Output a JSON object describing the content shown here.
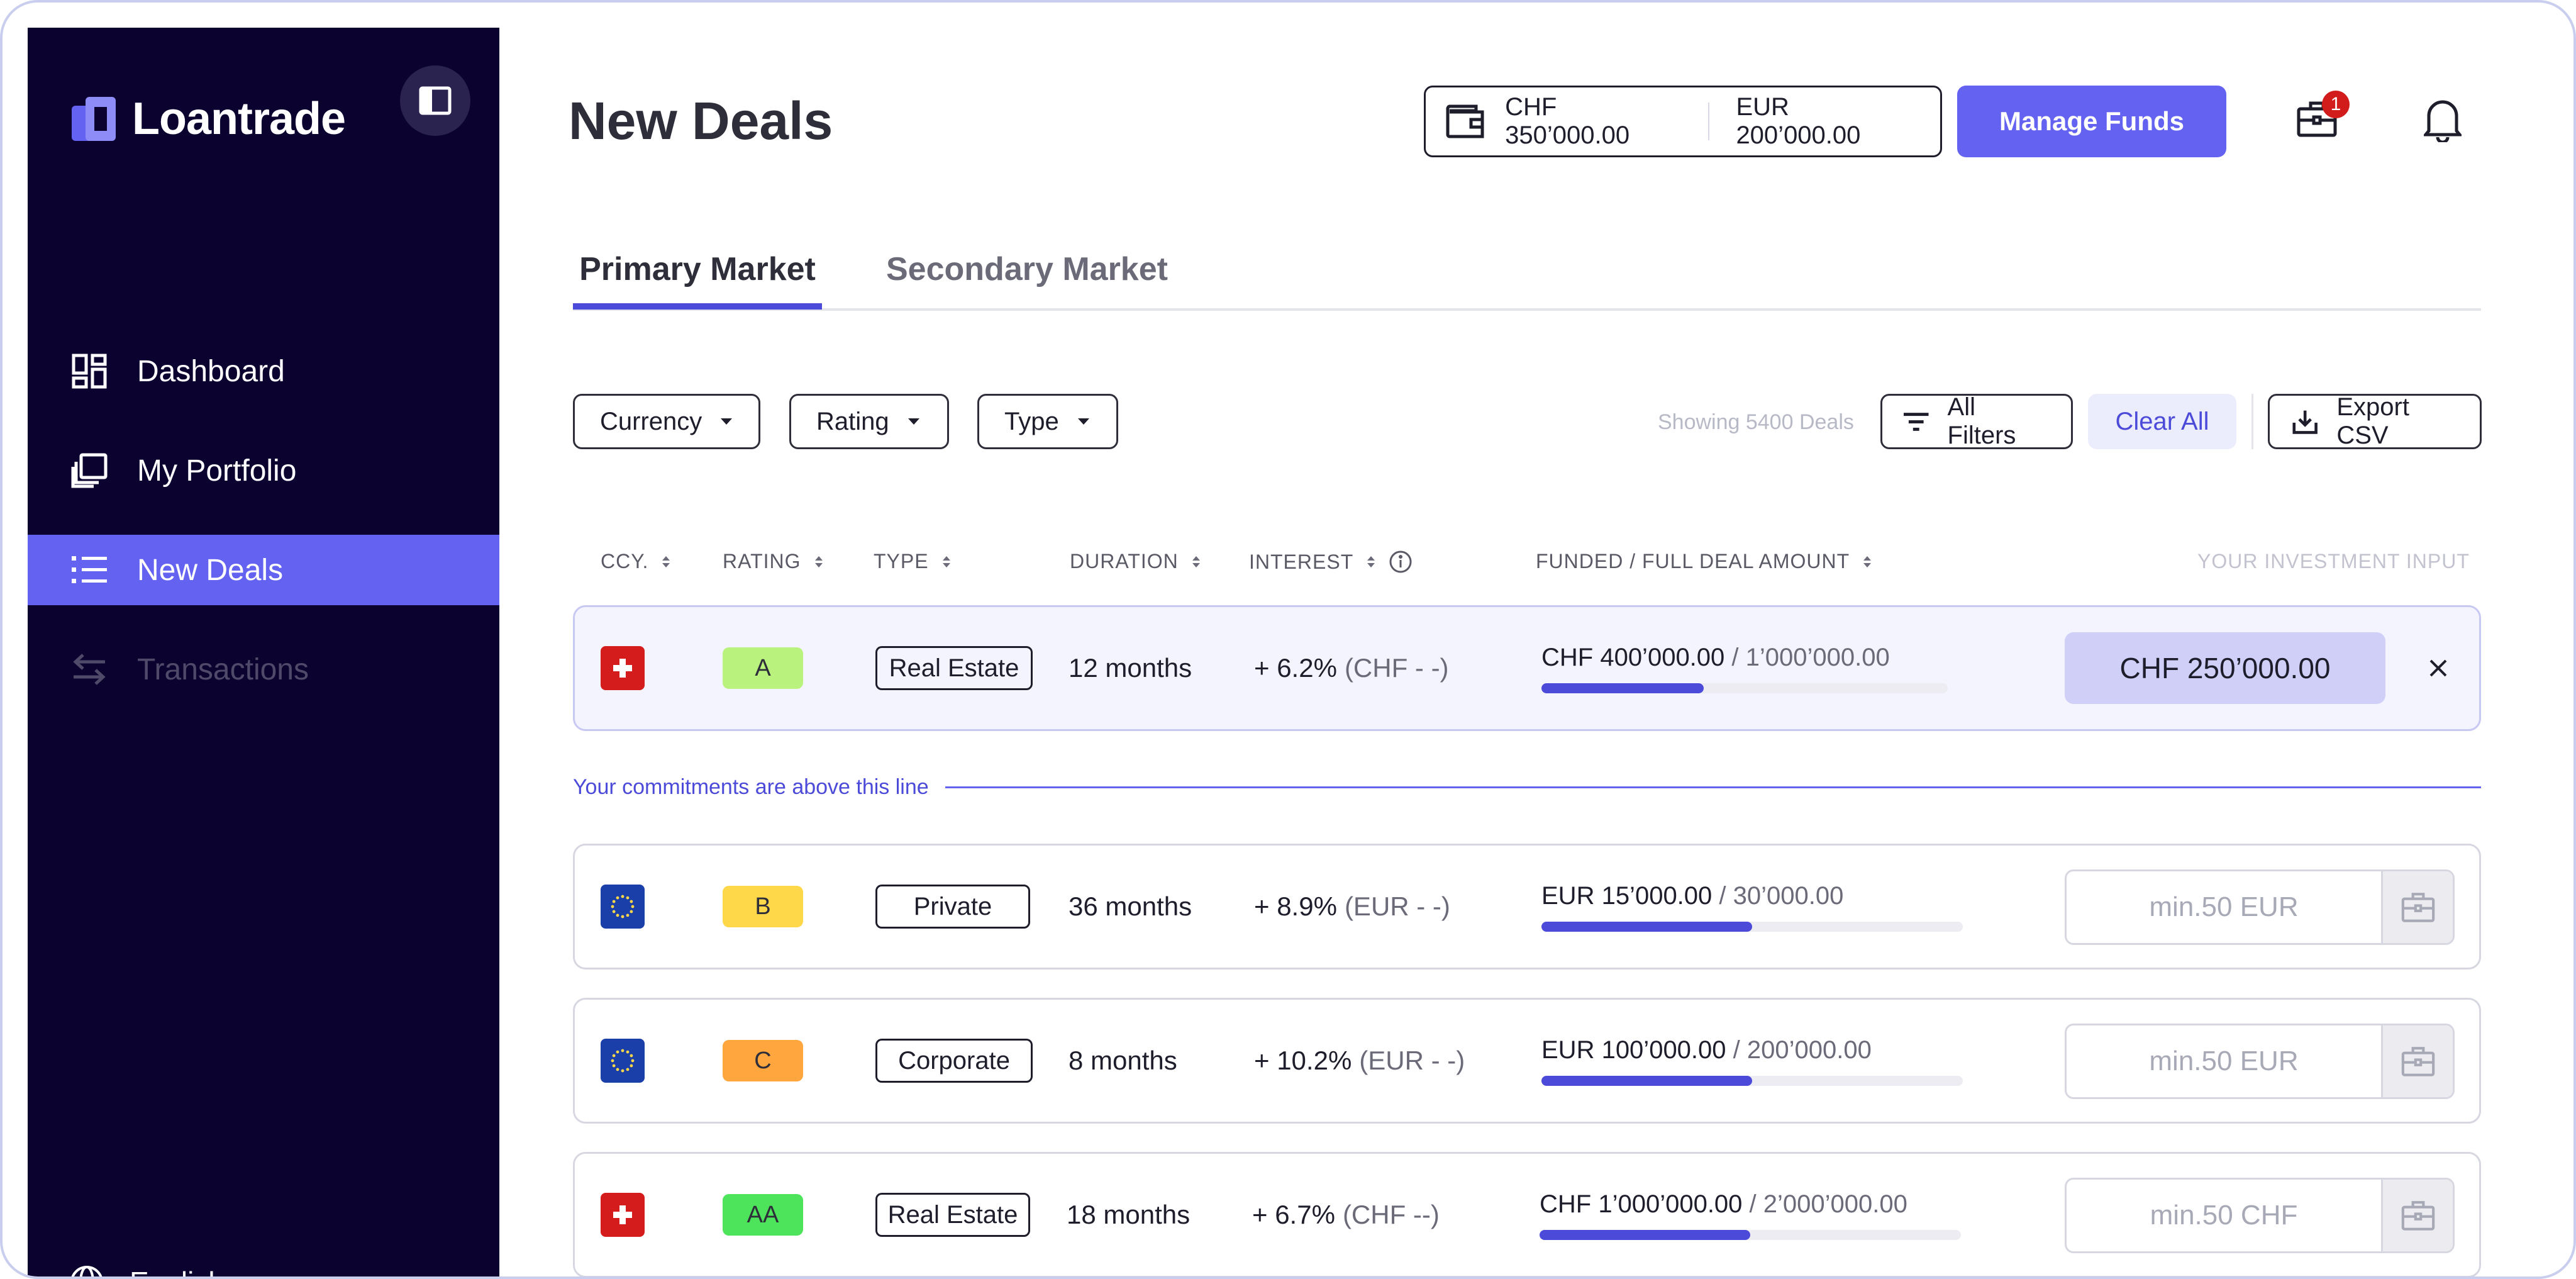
{
  "app": {
    "name": "Loantrade"
  },
  "sidebar": {
    "items": [
      {
        "label": "Dashboard",
        "icon": "dashboard-icon",
        "state": "normal"
      },
      {
        "label": "My Portfolio",
        "icon": "portfolio-icon",
        "state": "normal"
      },
      {
        "label": "New Deals",
        "icon": "list-icon",
        "state": "active"
      },
      {
        "label": "Transactions",
        "icon": "transfer-icon",
        "state": "disabled"
      }
    ],
    "language": "English"
  },
  "header": {
    "title": "New Deals",
    "balance_chf": "CHF 350’000.00",
    "balance_eur": "EUR 200’000.00",
    "manage_label": "Manage Funds",
    "notification_count": "1"
  },
  "tabs": [
    {
      "label": "Primary Market",
      "active": true
    },
    {
      "label": "Secondary Market",
      "active": false
    }
  ],
  "filters": {
    "currency": "Currency",
    "rating": "Rating",
    "type": "Type",
    "showing": "Showing 5400 Deals",
    "all_filters": "All Filters",
    "clear_all": "Clear All",
    "export": "Export CSV"
  },
  "table": {
    "headers": {
      "ccy": "CCY.",
      "rating": "RATING",
      "type": "TYPE",
      "duration": "DURATION",
      "interest": "INTEREST",
      "funded": "FUNDED / FULL DEAL AMOUNT",
      "input": "YOUR INVESTMENT INPUT"
    },
    "commit_note": "Your commitments are above this line",
    "committed_row": {
      "currency": "CHF",
      "rating": "A",
      "rating_color": "#b9f27c",
      "type": "Real Estate",
      "duration": "12 months",
      "interest": "+ 6.2%",
      "interest_extra": "(CHF - -)",
      "funded": "CHF 400’000.00",
      "full": " / 1’000’000.00",
      "progress": 0.4,
      "investment": "CHF 250’000.00"
    },
    "rows": [
      {
        "currency": "EUR",
        "rating": "B",
        "rating_color": "#ffd84a",
        "type": "Private",
        "duration": "36 months",
        "interest": "+ 8.9%",
        "interest_extra": "(EUR - -)",
        "funded": "EUR 15’000.00",
        "full": " / 30’000.00",
        "progress": 0.5,
        "input_placeholder": "min.50 EUR"
      },
      {
        "currency": "EUR",
        "rating": "C",
        "rating_color": "#ffa63e",
        "type": "Corporate",
        "duration": "8 months",
        "interest": "+ 10.2%",
        "interest_extra": "(EUR - -)",
        "funded": "EUR 100’000.00",
        "full": " / 200’000.00",
        "progress": 0.5,
        "input_placeholder": "min.50 EUR"
      },
      {
        "currency": "CHF",
        "rating": "AA",
        "rating_color": "#4de35a",
        "type": "Real Estate",
        "duration": "18 months",
        "interest": "+ 6.7%",
        "interest_extra": "(CHF --)",
        "funded": "CHF 1’000’000.00",
        "full": " / 2’000’000.00",
        "progress": 0.5,
        "input_placeholder": "min.50 CHF"
      }
    ]
  },
  "colors": {
    "accent": "#6462f1",
    "sidebar": "#0b0230",
    "progress": "#4c4ad8"
  }
}
